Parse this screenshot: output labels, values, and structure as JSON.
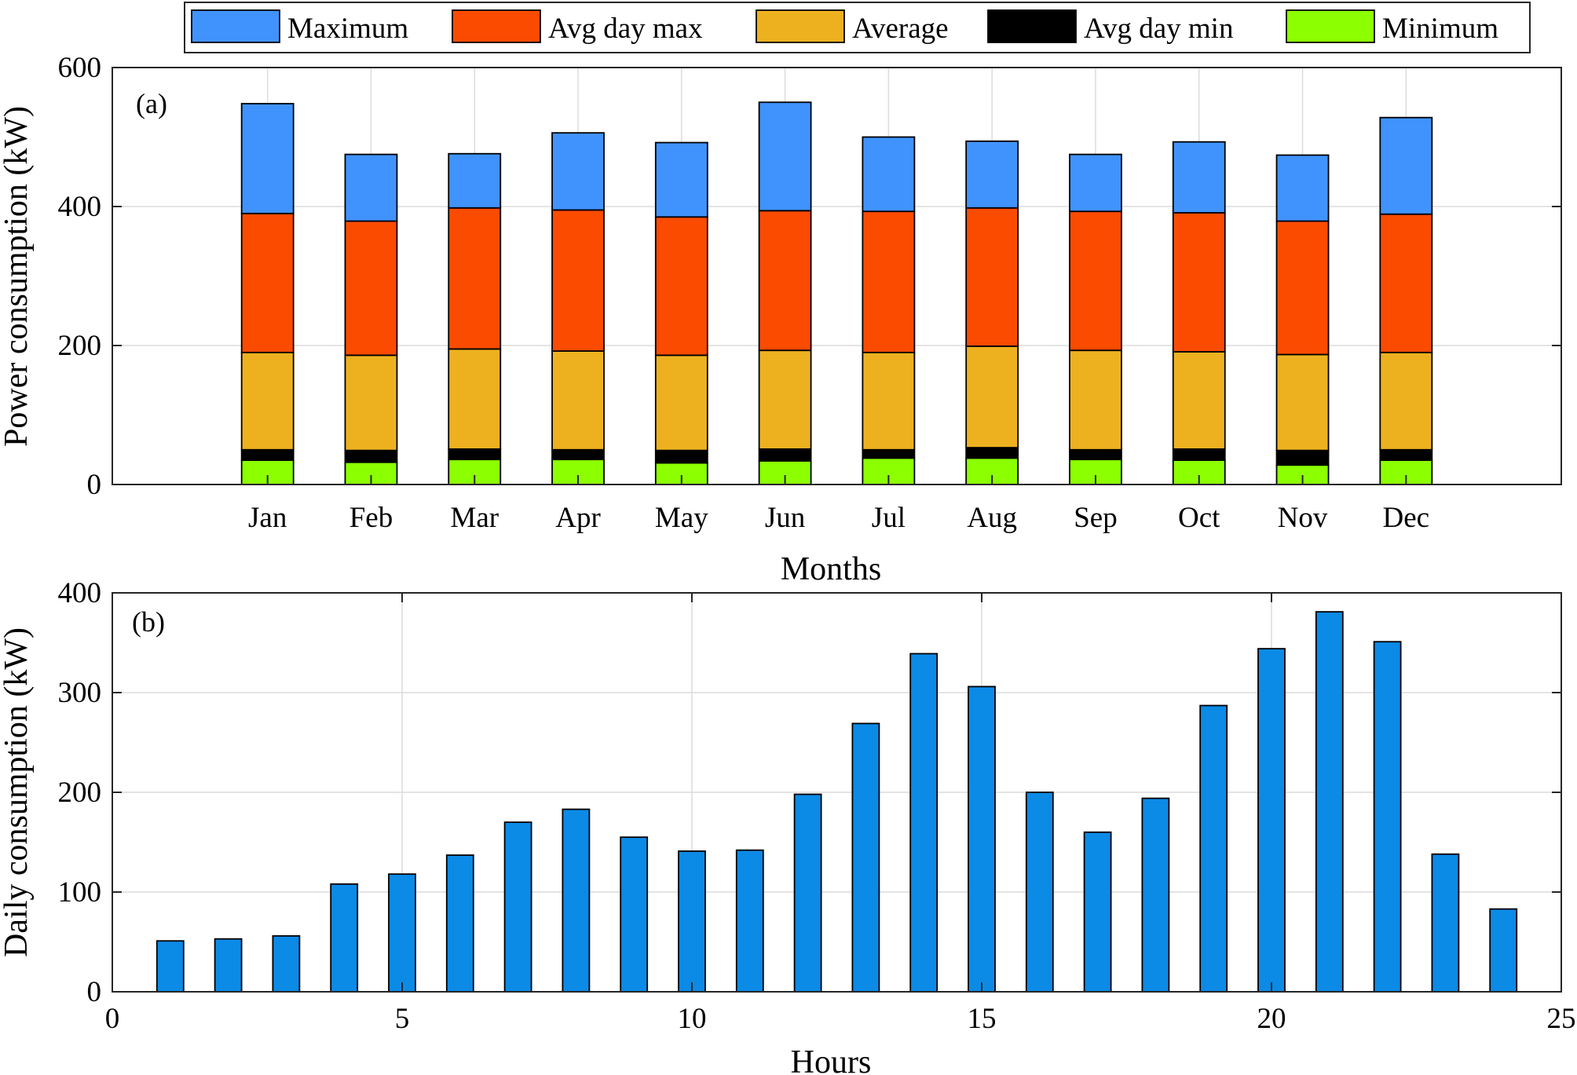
{
  "chart_data": [
    {
      "type": "bar",
      "stacked": true,
      "panel_label": "(a)",
      "xlabel": "Months",
      "ylabel": "Power consumption (kW)",
      "ylim": [
        0,
        600
      ],
      "yticks": [
        0,
        200,
        400,
        600
      ],
      "grid": true,
      "legend_position": "top",
      "categories": [
        "Jan",
        "Feb",
        "Mar",
        "Apr",
        "May",
        "Jun",
        "Jul",
        "Aug",
        "Sep",
        "Oct",
        "Nov",
        "Dec"
      ],
      "series": [
        {
          "name": "Minimum",
          "color": "#8cff00",
          "top_values": [
            35,
            32,
            36,
            36,
            31,
            34,
            38,
            38,
            36,
            35,
            28,
            35
          ]
        },
        {
          "name": "Avg day min",
          "color": "#000000",
          "top_values": [
            50,
            49,
            51,
            50,
            49,
            51,
            50,
            53,
            50,
            51,
            49,
            50
          ]
        },
        {
          "name": "Average",
          "color": "#edb120",
          "top_values": [
            190,
            186,
            195,
            192,
            186,
            193,
            190,
            199,
            193,
            191,
            187,
            190
          ]
        },
        {
          "name": "Avg day max",
          "color": "#fa4b00",
          "top_values": [
            390,
            379,
            398,
            395,
            385,
            394,
            393,
            398,
            393,
            391,
            379,
            389
          ]
        },
        {
          "name": "Maximum",
          "color": "#4093fc",
          "top_values": [
            548,
            475,
            476,
            506,
            492,
            550,
            500,
            494,
            475,
            493,
            474,
            528
          ]
        }
      ],
      "legend_order": [
        "Maximum",
        "Avg day max",
        "Average",
        "Avg day min",
        "Minimum"
      ]
    },
    {
      "type": "bar",
      "panel_label": "(b)",
      "xlabel": "Hours",
      "ylabel": "Daily consumption (kW)",
      "xlim": [
        0,
        25
      ],
      "ylim": [
        0,
        400
      ],
      "xticks": [
        0,
        5,
        10,
        15,
        20,
        25
      ],
      "yticks": [
        0,
        100,
        200,
        300,
        400
      ],
      "grid": true,
      "color": "#0b8ae6",
      "x": [
        1,
        2,
        3,
        4,
        5,
        6,
        7,
        8,
        9,
        10,
        11,
        12,
        13,
        14,
        15,
        16,
        17,
        18,
        19,
        20,
        21,
        22,
        23,
        24
      ],
      "values": [
        51,
        53,
        56,
        108,
        118,
        137,
        170,
        183,
        155,
        141,
        142,
        198,
        269,
        339,
        306,
        200,
        160,
        194,
        287,
        344,
        381,
        351,
        138,
        83
      ]
    }
  ]
}
